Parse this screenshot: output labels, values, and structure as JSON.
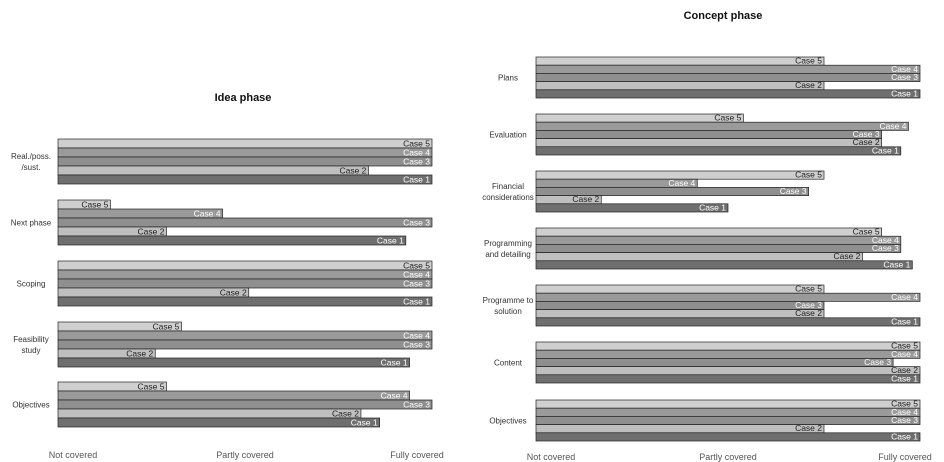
{
  "colors": {
    "Case 1": "#6f6f6f",
    "Case 2": "#bfbfbf",
    "Case 3": "#8f8f8f",
    "Case 4": "#9a9a9a",
    "Case 5": "#cfcfcf",
    "stroke": "#222222"
  },
  "chart_data": [
    {
      "type": "bar",
      "orientation": "horizontal",
      "title": "Idea phase",
      "x_tick_labels": [
        "Not covered",
        "Partly covered",
        "Fully covered"
      ],
      "xlim": [
        0,
        1
      ],
      "grid": false,
      "categories": [
        "Real./poss. /sust.",
        "Next phase",
        "Scoping",
        "Feasibility study",
        "Objectives"
      ],
      "category_lines": [
        [
          "Real./poss.",
          "/sust."
        ],
        [
          "Next phase"
        ],
        [
          "Scoping"
        ],
        [
          "Feasibility",
          "study"
        ],
        [
          "Objectives"
        ]
      ],
      "series_order": [
        "Case 5",
        "Case 4",
        "Case 3",
        "Case 2",
        "Case 1"
      ],
      "values": [
        {
          "Case 5": 1.0,
          "Case 4": 1.0,
          "Case 3": 1.0,
          "Case 2": 0.83,
          "Case 1": 1.0
        },
        {
          "Case 5": 0.14,
          "Case 4": 0.44,
          "Case 3": 1.0,
          "Case 2": 0.29,
          "Case 1": 0.93
        },
        {
          "Case 5": 1.0,
          "Case 4": 1.0,
          "Case 3": 1.0,
          "Case 2": 0.51,
          "Case 1": 1.0
        },
        {
          "Case 5": 0.33,
          "Case 4": 1.0,
          "Case 3": 1.0,
          "Case 2": 0.26,
          "Case 1": 0.94
        },
        {
          "Case 5": 0.29,
          "Case 4": 0.94,
          "Case 3": 1.0,
          "Case 2": 0.81,
          "Case 1": 0.86
        }
      ]
    },
    {
      "type": "bar",
      "orientation": "horizontal",
      "title": "Concept phase",
      "x_tick_labels": [
        "Not covered",
        "Partly covered",
        "Fully covered"
      ],
      "xlim": [
        0,
        1
      ],
      "grid": false,
      "categories": [
        "Plans",
        "Evaluation",
        "Financial considerations",
        "Programming and detailing",
        "Programme to solution",
        "Content",
        "Objectives"
      ],
      "category_lines": [
        [
          "Plans"
        ],
        [
          "Evaluation"
        ],
        [
          "Financial",
          "considerations"
        ],
        [
          "Programming",
          "and detailing"
        ],
        [
          "Programme to",
          "solution"
        ],
        [
          "Content"
        ],
        [
          "Objectives"
        ]
      ],
      "series_order": [
        "Case 5",
        "Case 4",
        "Case 3",
        "Case 2",
        "Case 1"
      ],
      "values": [
        {
          "Case 5": 0.75,
          "Case 4": 1.0,
          "Case 3": 1.0,
          "Case 2": 0.75,
          "Case 1": 1.0
        },
        {
          "Case 5": 0.54,
          "Case 4": 0.97,
          "Case 3": 0.9,
          "Case 2": 0.9,
          "Case 1": 0.95
        },
        {
          "Case 5": 0.75,
          "Case 4": 0.42,
          "Case 3": 0.71,
          "Case 2": 0.17,
          "Case 1": 0.5
        },
        {
          "Case 5": 0.9,
          "Case 4": 0.95,
          "Case 3": 0.95,
          "Case 2": 0.85,
          "Case 1": 0.98
        },
        {
          "Case 5": 0.75,
          "Case 4": 1.0,
          "Case 3": 0.75,
          "Case 2": 0.75,
          "Case 1": 1.0
        },
        {
          "Case 5": 1.0,
          "Case 4": 1.0,
          "Case 3": 0.93,
          "Case 2": 1.0,
          "Case 1": 1.0
        },
        {
          "Case 5": 1.0,
          "Case 4": 1.0,
          "Case 3": 1.0,
          "Case 2": 0.75,
          "Case 1": 1.0
        }
      ]
    }
  ]
}
